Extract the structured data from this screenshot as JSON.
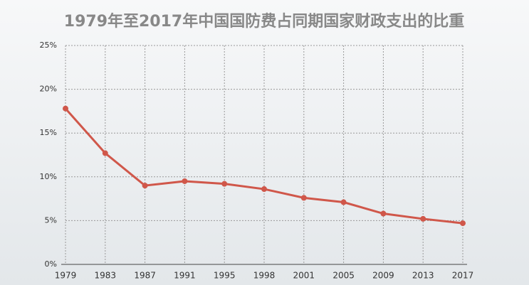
{
  "chart_data": {
    "type": "line",
    "title": "1979年至2017年中国国防费占同期国家财政支出的比重",
    "categories": [
      "1979",
      "1983",
      "1987",
      "1991",
      "1995",
      "1998",
      "2001",
      "2005",
      "2009",
      "2013",
      "2017"
    ],
    "series": [
      {
        "color": "#d0574a",
        "values": [
          17.8,
          12.7,
          9.0,
          9.5,
          9.2,
          8.6,
          7.6,
          7.1,
          5.8,
          5.2,
          4.7
        ]
      }
    ],
    "ylim": [
      0,
      25
    ],
    "yticks": [
      {
        "value": 0,
        "label": "0%"
      },
      {
        "value": 5,
        "label": "5%"
      },
      {
        "value": 10,
        "label": "10%"
      },
      {
        "value": 15,
        "label": "15%"
      },
      {
        "value": 20,
        "label": "20%"
      },
      {
        "value": 25,
        "label": "25%"
      }
    ],
    "grid": true
  }
}
